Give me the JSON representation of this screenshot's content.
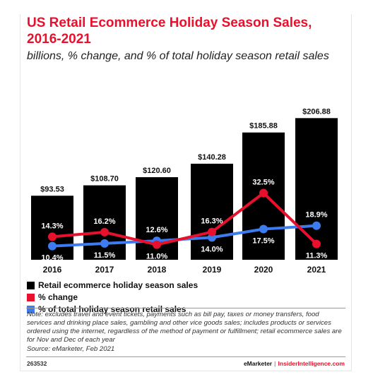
{
  "title": "US Retail Ecommerce Holiday Season Sales, 2016-2021",
  "subtitle": "billions, % change, and % of total holiday season retail sales",
  "chart_data": {
    "type": "bar",
    "categories": [
      "2016",
      "2017",
      "2018",
      "2019",
      "2020",
      "2021"
    ],
    "series": [
      {
        "name": "Retail ecommerce holiday season sales",
        "type": "bar",
        "color": "#000000",
        "values": [
          93.53,
          108.7,
          120.6,
          140.28,
          185.88,
          206.88
        ],
        "labels": [
          "$93.53",
          "$108.70",
          "$120.60",
          "$140.28",
          "$185.88",
          "$206.88"
        ]
      },
      {
        "name": "% change",
        "type": "line",
        "color": "#e8112d",
        "values": [
          14.3,
          16.2,
          11.0,
          16.3,
          32.5,
          11.3
        ],
        "labels": [
          "14.3%",
          "16.2%",
          "11.0%",
          "16.3%",
          "32.5%",
          "11.3%"
        ]
      },
      {
        "name": "% of total holiday season retail sales",
        "type": "line",
        "color": "#3d7cf0",
        "values": [
          10.4,
          11.5,
          12.6,
          14.0,
          17.5,
          18.9
        ],
        "labels": [
          "10.4%",
          "11.5%",
          "12.6%",
          "14.0%",
          "17.5%",
          "18.9%"
        ]
      }
    ],
    "legend_position": "bottom-left",
    "grid": false
  },
  "legend": [
    {
      "label": "Retail ecommerce holiday season sales",
      "color": "#000000"
    },
    {
      "label": "% change",
      "color": "#e8112d"
    },
    {
      "label": "% of total holiday season retail sales",
      "color": "#3d7cf0"
    }
  ],
  "note": "Note: excludes travel and event tickets, payments such as bill pay, taxes or money transfers, food services and drinking place sales, gambling and other vice goods sales; includes products or services ordered using the internet, regardless of the method of payment or fulfillment; retail ecommerce sales are for Nov and Dec of each year",
  "source": "Source: eMarketer, Feb 2021",
  "chart_id": "263532",
  "brand": {
    "emarketer": "eMarketer",
    "separator": "|",
    "insider": "InsiderIntelligence.com"
  }
}
